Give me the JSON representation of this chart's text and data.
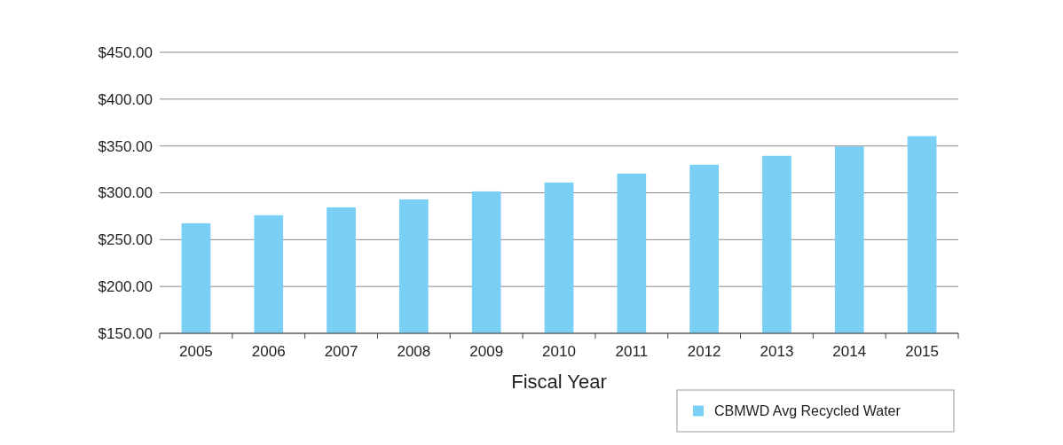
{
  "chart_data": {
    "type": "bar",
    "xlabel": "Fiscal Year",
    "categories": [
      "2005",
      "2006",
      "2007",
      "2008",
      "2009",
      "2010",
      "2011",
      "2012",
      "2013",
      "2014",
      "2015"
    ],
    "series": [
      {
        "name": "CBMWD Avg Recycled Water",
        "color": "#7ad0f4",
        "values": [
          267.5,
          276,
          284.5,
          293,
          301.5,
          311,
          320.5,
          330,
          339.5,
          349.5,
          360.5
        ]
      }
    ],
    "ylim": [
      150,
      450
    ],
    "yticks": [
      {
        "value": 150,
        "label": "$150.00"
      },
      {
        "value": 200,
        "label": "$200.00"
      },
      {
        "value": 250,
        "label": "$250.00"
      },
      {
        "value": 300,
        "label": "$300.00"
      },
      {
        "value": 350,
        "label": "$350.00"
      },
      {
        "value": 400,
        "label": "$400.00"
      },
      {
        "value": 450,
        "label": "$450.00"
      }
    ],
    "grid": "y",
    "legend": "bottom right"
  }
}
